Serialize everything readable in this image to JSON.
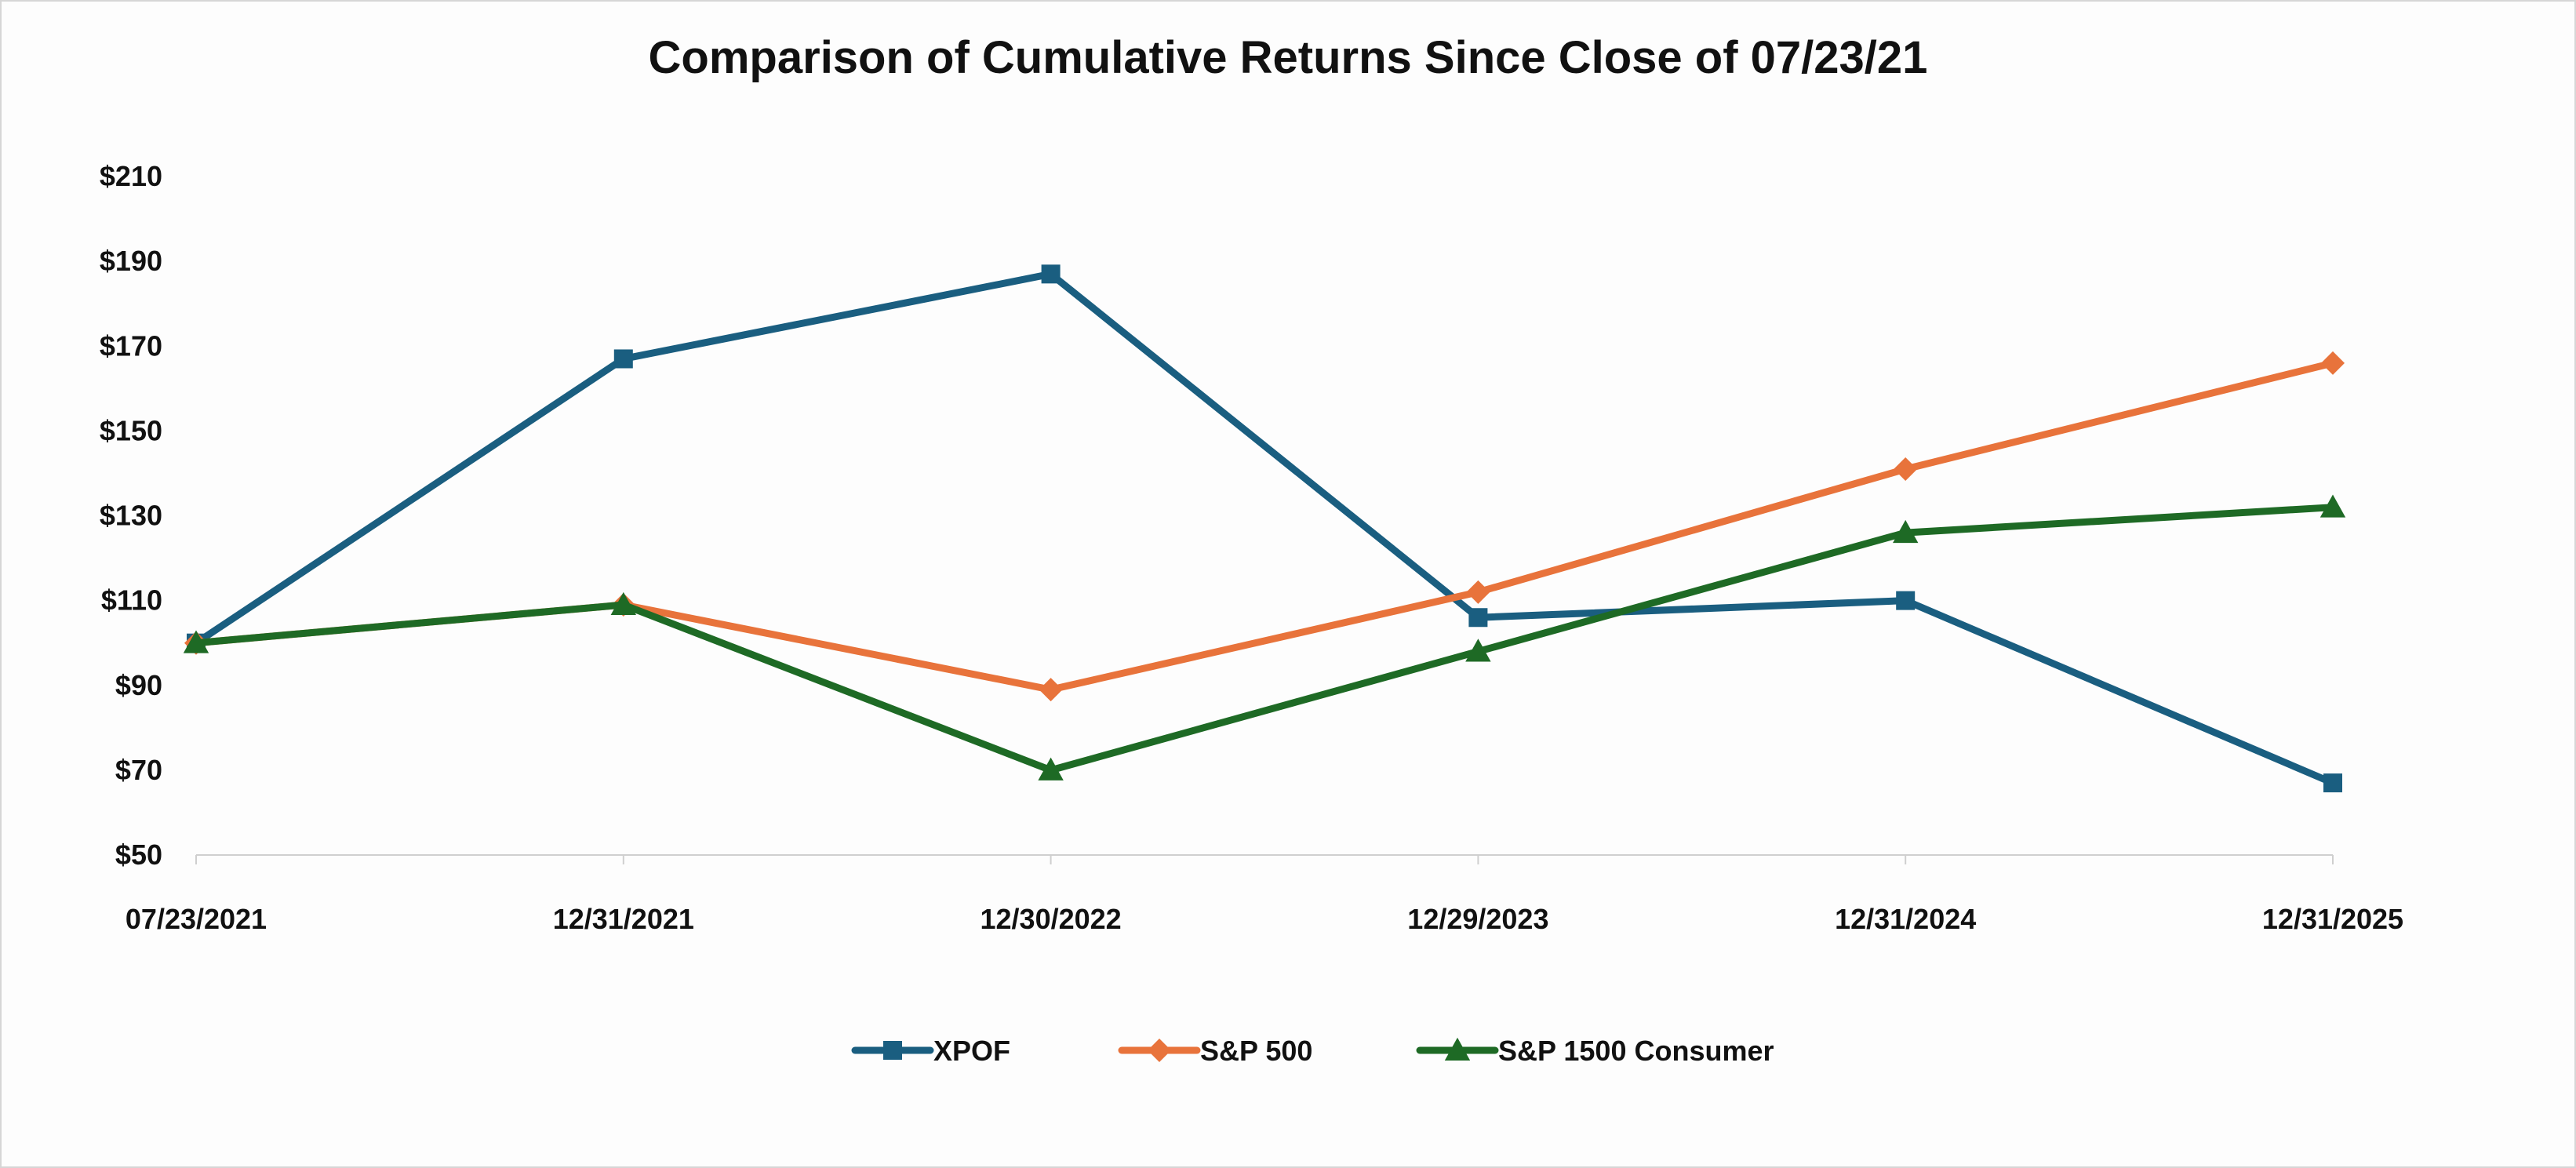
{
  "chart_data": {
    "type": "line",
    "title": "Comparison of Cumulative Returns Since Close of 07/23/21",
    "xlabel": "",
    "ylabel": "",
    "categories": [
      "07/23/2021",
      "12/31/2021",
      "12/30/2022",
      "12/29/2023",
      "12/31/2024",
      "12/31/2025"
    ],
    "ylim": [
      50,
      210
    ],
    "yticks": [
      50,
      70,
      90,
      110,
      130,
      150,
      170,
      190,
      210
    ],
    "ytick_labels": [
      "$50",
      "$70",
      "$90",
      "$110",
      "$130",
      "$150",
      "$170",
      "$190",
      "$210"
    ],
    "grid": false,
    "legend_position": "bottom",
    "series": [
      {
        "name": "XPOF",
        "color": "#1a5e80",
        "marker": "square",
        "values": [
          100,
          167,
          187,
          106,
          110,
          67
        ]
      },
      {
        "name": "S&P 500",
        "color": "#e8733b",
        "marker": "diamond",
        "values": [
          100,
          109,
          89,
          112,
          141,
          166
        ]
      },
      {
        "name": "S&P 1500 Consumer",
        "color": "#1e6a25",
        "marker": "triangle",
        "values": [
          100,
          109,
          70,
          98,
          126,
          132
        ]
      }
    ]
  }
}
